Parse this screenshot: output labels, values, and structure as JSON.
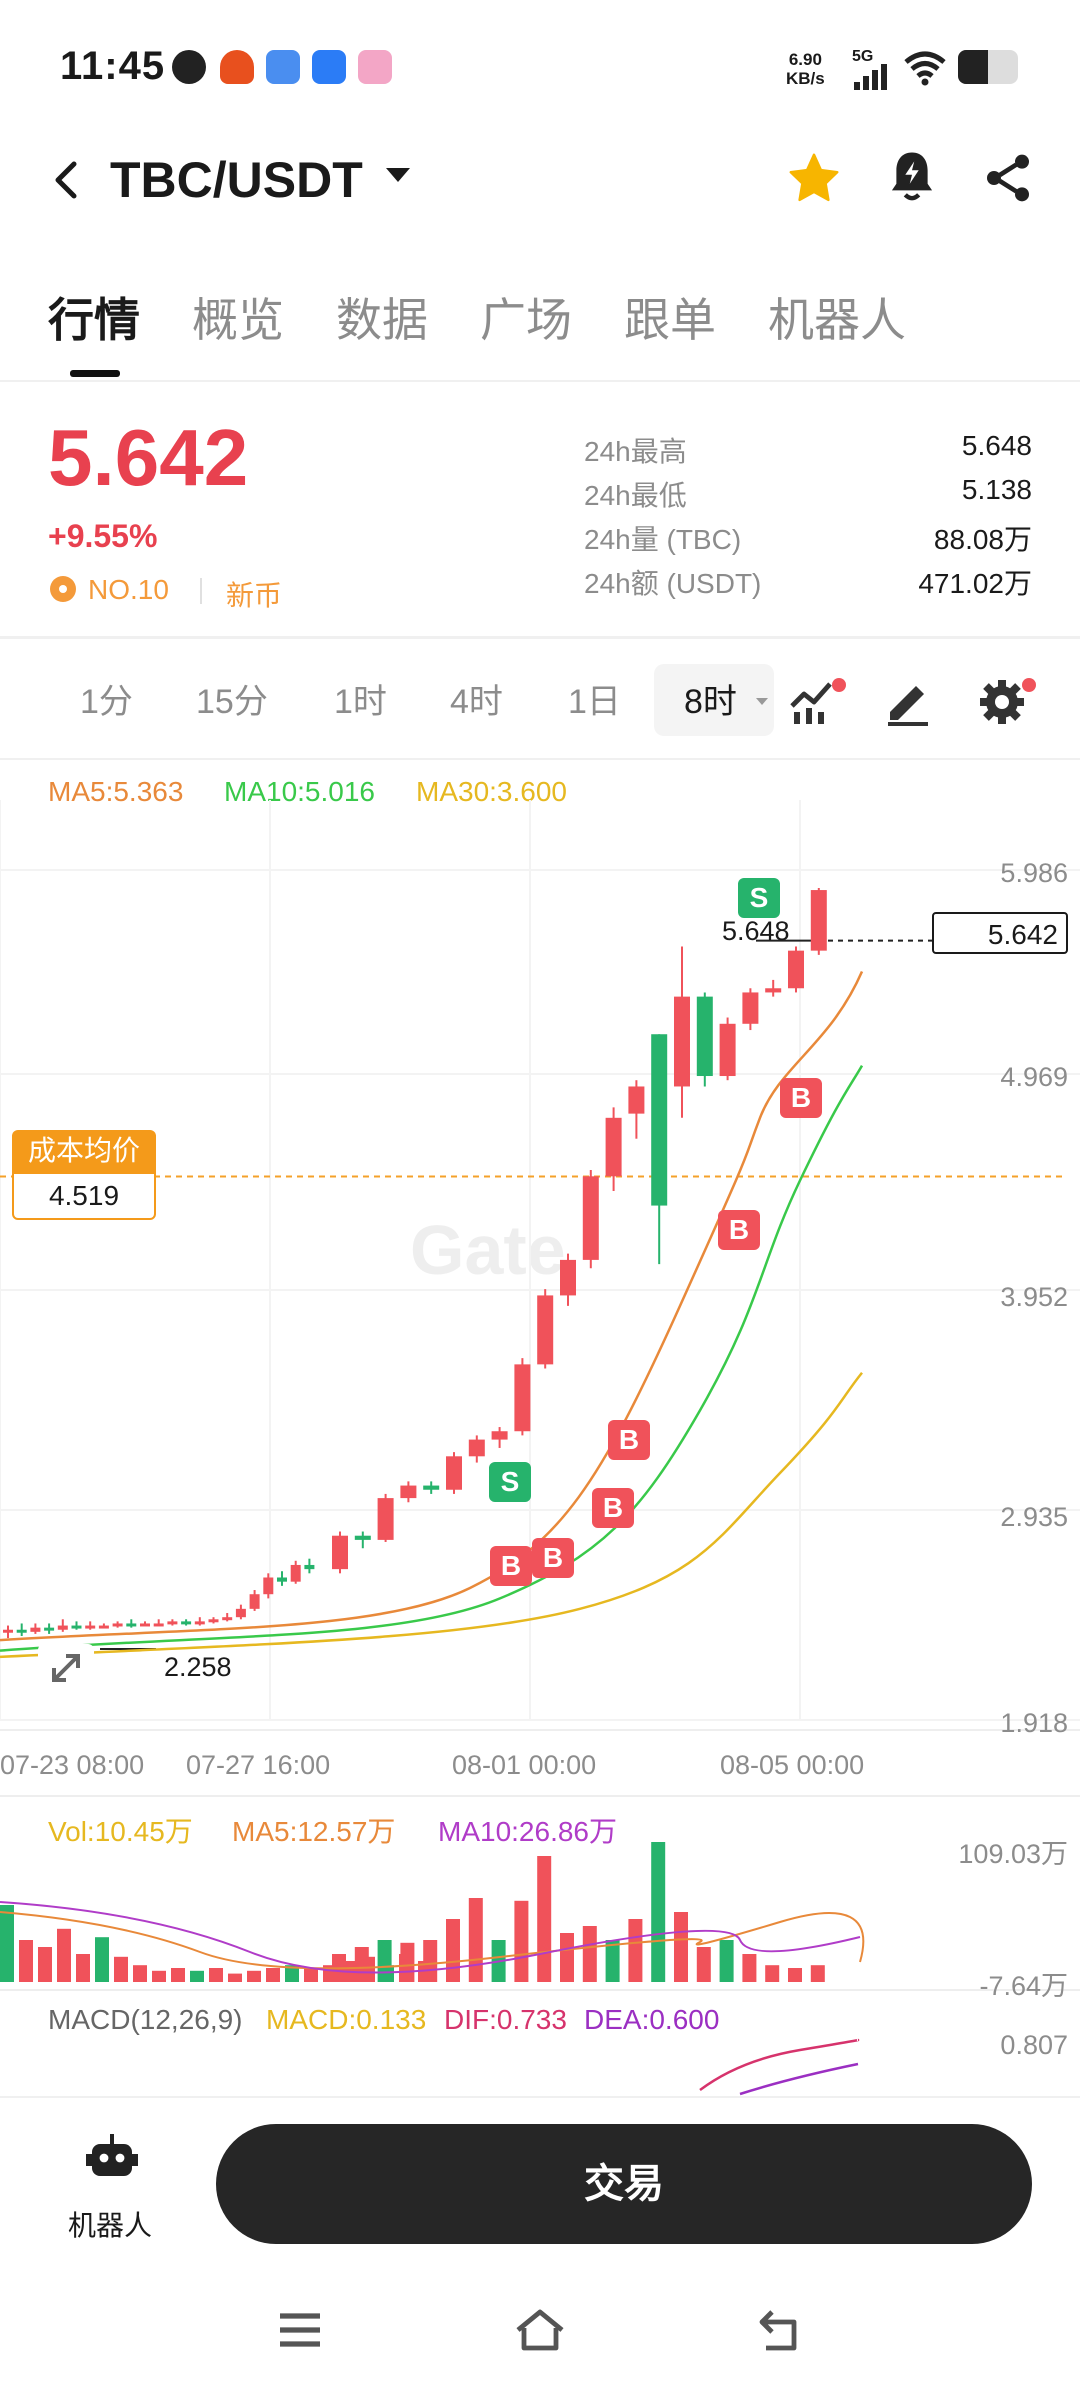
{
  "status_bar": {
    "time": "11:45",
    "net_speed_value": "6.90",
    "net_speed_unit": "KB/s",
    "network": "5G"
  },
  "header": {
    "pair": "TBC/USDT"
  },
  "tabs": [
    "行情",
    "概览",
    "数据",
    "广场",
    "跟单",
    "机器人"
  ],
  "ticker": {
    "last_price": "5.642",
    "change": "+9.55%",
    "rank": "NO.10",
    "tag": "新币",
    "stats": [
      {
        "label": "24h最高",
        "value": "5.648"
      },
      {
        "label": "24h最低",
        "value": "5.138"
      },
      {
        "label": "24h量 (TBC)",
        "value": "88.08万"
      },
      {
        "label": "24h额 (USDT)",
        "value": "471.02万"
      }
    ]
  },
  "timeframes": [
    "1分",
    "15分",
    "1时",
    "4时",
    "1日",
    "8时"
  ],
  "indicators": {
    "ma5": "MA5:5.363",
    "ma10": "MA10:5.016",
    "ma30": "MA30:3.600"
  },
  "chart": {
    "y_ticks": [
      "5.986",
      "4.969",
      "3.952",
      "2.935",
      "1.918"
    ],
    "x_ticks": [
      "07-23 08:00",
      "07-27 16:00",
      "08-01 00:00",
      "08-05 00:00"
    ],
    "last_price_tag": "5.642",
    "high_marker": "5.648",
    "low_marker": "2.258",
    "cost_label": "成本均价",
    "cost_value": "4.519",
    "watermark": "Gate",
    "signals": {
      "buy": "B",
      "sell": "S"
    },
    "colors": {
      "up": "#f0525a",
      "down": "#26b36c",
      "ma5": "#e8893a",
      "ma10": "#39c94a",
      "ma30": "#e6b820"
    }
  },
  "volume": {
    "vol": "Vol:10.45万",
    "ma5": "MA5:12.57万",
    "ma10": "MA10:26.86万",
    "y_top": "109.03万",
    "y_bottom": "-7.64万"
  },
  "macd": {
    "title": "MACD(12,26,9)",
    "macd": "MACD:0.133",
    "dif": "DIF:0.733",
    "dea": "DEA:0.600",
    "y_top": "0.807"
  },
  "bottom": {
    "robot_label": "机器人",
    "trade_button": "交易"
  }
}
